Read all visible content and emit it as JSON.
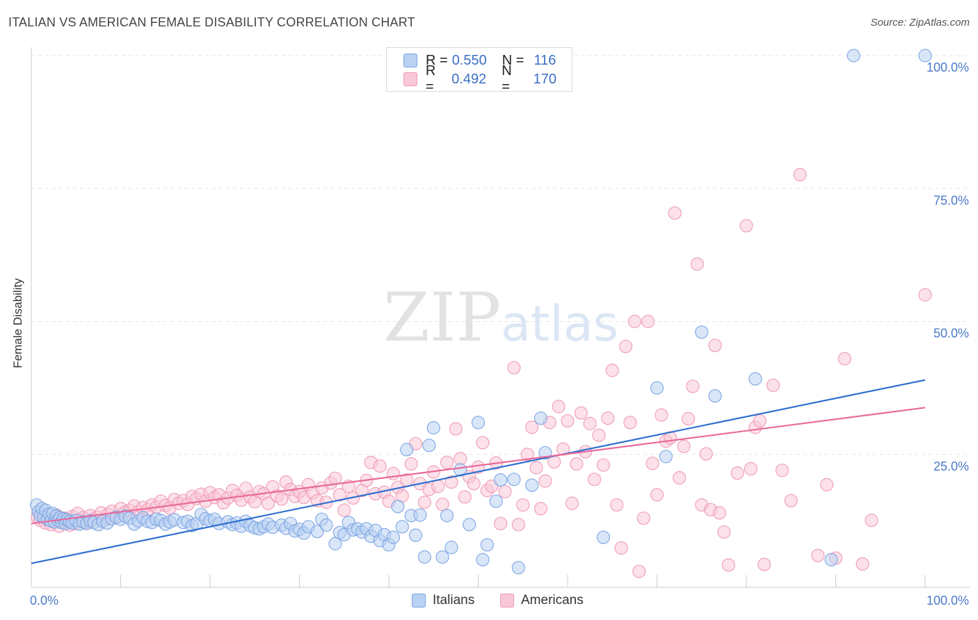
{
  "chart_data": {
    "type": "scatter",
    "title": "ITALIAN VS AMERICAN FEMALE DISABILITY CORRELATION CHART",
    "source": "Source: ZipAtlas.com",
    "watermark": "ZIPatlas",
    "xlabel": "",
    "ylabel": "Female Disability",
    "xlim": [
      0,
      100
    ],
    "ylim": [
      0,
      102
    ],
    "x_tick_labels": [
      "0.0%",
      "100.0%"
    ],
    "y_tick_labels": [
      "25.0%",
      "50.0%",
      "75.0%",
      "100.0%"
    ],
    "y_tick_values": [
      25,
      50,
      75,
      100
    ],
    "legend_stats": [
      {
        "r_label": "R =",
        "r_value": "0.550",
        "n_label": "N =",
        "n_value": "116"
      },
      {
        "r_label": "R =",
        "r_value": "0.492",
        "n_label": "N =",
        "n_value": "170"
      }
    ],
    "series": [
      {
        "name": "Italians",
        "color": "#7aa3e2",
        "fill": "#b9d1f3",
        "line_color": "#2e6fd0",
        "trend": {
          "x0": 0,
          "y0": 4.5,
          "x1": 100,
          "y1": 39
        },
        "points": [
          [
            0.6,
            15.5
          ],
          [
            0.8,
            14.2
          ],
          [
            1.0,
            13.5
          ],
          [
            1.2,
            14.8
          ],
          [
            1.4,
            13.2
          ],
          [
            1.6,
            14.5
          ],
          [
            1.8,
            12.8
          ],
          [
            2.0,
            13.8
          ],
          [
            2.2,
            12.5
          ],
          [
            2.4,
            13.9
          ],
          [
            2.6,
            12.3
          ],
          [
            2.8,
            13.4
          ],
          [
            3.0,
            12.6
          ],
          [
            3.2,
            13.1
          ],
          [
            3.4,
            12.2
          ],
          [
            3.6,
            12.9
          ],
          [
            3.8,
            12.0
          ],
          [
            4.0,
            12.7
          ],
          [
            4.3,
            12.4
          ],
          [
            4.6,
            12.1
          ],
          [
            5.0,
            12.6
          ],
          [
            5.4,
            11.9
          ],
          [
            5.8,
            12.3
          ],
          [
            6.2,
            12.0
          ],
          [
            6.6,
            12.5
          ],
          [
            7.0,
            12.2
          ],
          [
            7.5,
            11.8
          ],
          [
            8.0,
            12.4
          ],
          [
            8.5,
            12.1
          ],
          [
            9.0,
            12.9
          ],
          [
            9.5,
            13.2
          ],
          [
            10.0,
            12.8
          ],
          [
            10.5,
            13.4
          ],
          [
            11.0,
            13.0
          ],
          [
            11.5,
            11.9
          ],
          [
            12.0,
            12.5
          ],
          [
            12.5,
            13.1
          ],
          [
            13.0,
            12.4
          ],
          [
            13.5,
            12.2
          ],
          [
            14.0,
            12.8
          ],
          [
            14.5,
            12.6
          ],
          [
            15.0,
            11.9
          ],
          [
            15.5,
            12.3
          ],
          [
            16.0,
            12.7
          ],
          [
            17.0,
            12.2
          ],
          [
            17.5,
            12.4
          ],
          [
            18.0,
            11.6
          ],
          [
            18.5,
            12.0
          ],
          [
            19.0,
            13.7
          ],
          [
            19.5,
            12.9
          ],
          [
            20.0,
            12.5
          ],
          [
            20.5,
            12.8
          ],
          [
            21.0,
            12.0
          ],
          [
            22.0,
            12.3
          ],
          [
            22.5,
            11.8
          ],
          [
            23.0,
            12.1
          ],
          [
            23.5,
            11.5
          ],
          [
            24.0,
            12.4
          ],
          [
            24.5,
            11.6
          ],
          [
            25.0,
            11.2
          ],
          [
            25.5,
            11.0
          ],
          [
            26.0,
            11.4
          ],
          [
            26.5,
            11.9
          ],
          [
            27.0,
            11.3
          ],
          [
            28.0,
            11.7
          ],
          [
            28.5,
            11.1
          ],
          [
            29.0,
            12.0
          ],
          [
            29.5,
            10.6
          ],
          [
            30.0,
            10.9
          ],
          [
            30.5,
            10.2
          ],
          [
            31.0,
            11.4
          ],
          [
            32.0,
            10.5
          ],
          [
            32.5,
            12.8
          ],
          [
            33.0,
            11.7
          ],
          [
            34.0,
            8.2
          ],
          [
            34.5,
            10.3
          ],
          [
            35.0,
            9.9
          ],
          [
            35.5,
            12.2
          ],
          [
            36.0,
            10.8
          ],
          [
            36.5,
            11.0
          ],
          [
            37.0,
            10.4
          ],
          [
            37.5,
            11.0
          ],
          [
            38.0,
            9.6
          ],
          [
            38.5,
            10.7
          ],
          [
            39.0,
            8.8
          ],
          [
            39.5,
            9.9
          ],
          [
            40.0,
            8.0
          ],
          [
            40.5,
            9.4
          ],
          [
            41.0,
            15.2
          ],
          [
            41.5,
            11.4
          ],
          [
            42.0,
            25.9
          ],
          [
            42.5,
            13.5
          ],
          [
            43.0,
            9.8
          ],
          [
            43.5,
            13.6
          ],
          [
            44.0,
            5.7
          ],
          [
            44.5,
            26.7
          ],
          [
            45.0,
            30.0
          ],
          [
            46.0,
            5.7
          ],
          [
            46.5,
            13.5
          ],
          [
            47.0,
            7.5
          ],
          [
            48.0,
            22.1
          ],
          [
            49.0,
            11.8
          ],
          [
            50.0,
            31.0
          ],
          [
            50.5,
            5.2
          ],
          [
            51.0,
            8.0
          ],
          [
            52.0,
            16.2
          ],
          [
            52.5,
            20.2
          ],
          [
            54.0,
            20.3
          ],
          [
            54.5,
            3.7
          ],
          [
            56.0,
            19.2
          ],
          [
            57.0,
            31.8
          ],
          [
            57.5,
            25.3
          ],
          [
            64.0,
            9.4
          ],
          [
            70.0,
            37.5
          ],
          [
            71.0,
            24.6
          ],
          [
            75.0,
            48.0
          ],
          [
            76.5,
            36.0
          ],
          [
            81.0,
            39.2
          ],
          [
            89.5,
            5.2
          ],
          [
            92.0,
            100.0
          ],
          [
            100.0,
            100.0
          ]
        ]
      },
      {
        "name": "Americans",
        "color": "#ee98b3",
        "fill": "#f9c8d7",
        "line_color": "#e8699b",
        "trend": {
          "x0": 0,
          "y0": 12.0,
          "x1": 100,
          "y1": 33.8
        },
        "points": [
          [
            0.7,
            13.2
          ],
          [
            1.0,
            12.6
          ],
          [
            1.3,
            13.8
          ],
          [
            1.6,
            12.1
          ],
          [
            1.9,
            13.4
          ],
          [
            2.2,
            11.8
          ],
          [
            2.5,
            12.9
          ],
          [
            2.8,
            13.6
          ],
          [
            3.1,
            11.5
          ],
          [
            3.4,
            12.7
          ],
          [
            3.7,
            13.0
          ],
          [
            4.0,
            12.3
          ],
          [
            4.3,
            11.7
          ],
          [
            4.6,
            13.3
          ],
          [
            4.9,
            12.0
          ],
          [
            5.2,
            13.9
          ],
          [
            5.5,
            12.5
          ],
          [
            5.8,
            13.1
          ],
          [
            6.2,
            12.2
          ],
          [
            6.6,
            13.5
          ],
          [
            7.0,
            12.8
          ],
          [
            7.4,
            13.2
          ],
          [
            7.8,
            14.0
          ],
          [
            8.2,
            12.6
          ],
          [
            8.6,
            13.7
          ],
          [
            9.0,
            14.3
          ],
          [
            9.5,
            13.1
          ],
          [
            10.0,
            14.8
          ],
          [
            10.5,
            14.1
          ],
          [
            11.0,
            14.5
          ],
          [
            11.5,
            15.3
          ],
          [
            12.0,
            14.2
          ],
          [
            12.5,
            15.0
          ],
          [
            13.0,
            14.6
          ],
          [
            13.5,
            15.5
          ],
          [
            14.0,
            15.1
          ],
          [
            14.5,
            16.2
          ],
          [
            15.0,
            15.4
          ],
          [
            15.5,
            14.9
          ],
          [
            16.0,
            16.5
          ],
          [
            16.5,
            15.8
          ],
          [
            17.0,
            16.3
          ],
          [
            17.5,
            15.6
          ],
          [
            18.0,
            17.1
          ],
          [
            18.5,
            16.7
          ],
          [
            19.0,
            17.5
          ],
          [
            19.5,
            16.2
          ],
          [
            20.0,
            17.8
          ],
          [
            20.5,
            16.9
          ],
          [
            21.0,
            17.4
          ],
          [
            21.5,
            15.9
          ],
          [
            22.0,
            16.8
          ],
          [
            22.5,
            18.2
          ],
          [
            23.0,
            17.3
          ],
          [
            23.5,
            16.4
          ],
          [
            24.0,
            18.6
          ],
          [
            24.5,
            17.0
          ],
          [
            25.0,
            16.1
          ],
          [
            25.5,
            18.0
          ],
          [
            26.0,
            17.6
          ],
          [
            26.5,
            15.8
          ],
          [
            27.0,
            18.9
          ],
          [
            27.5,
            17.2
          ],
          [
            28.0,
            16.6
          ],
          [
            28.5,
            19.8
          ],
          [
            29.0,
            18.4
          ],
          [
            29.5,
            17.1
          ],
          [
            30.0,
            18.0
          ],
          [
            30.5,
            16.9
          ],
          [
            31.0,
            19.3
          ],
          [
            31.5,
            17.8
          ],
          [
            32.0,
            16.3
          ],
          [
            32.5,
            18.7
          ],
          [
            33.0,
            16.0
          ],
          [
            33.5,
            19.6
          ],
          [
            34.0,
            20.5
          ],
          [
            34.5,
            17.4
          ],
          [
            35.0,
            14.5
          ],
          [
            35.5,
            19.0
          ],
          [
            36.0,
            16.8
          ],
          [
            37.0,
            18.2
          ],
          [
            37.5,
            20.1
          ],
          [
            38.0,
            23.5
          ],
          [
            38.5,
            17.6
          ],
          [
            39.0,
            22.8
          ],
          [
            39.5,
            17.9
          ],
          [
            40.0,
            16.2
          ],
          [
            40.5,
            21.4
          ],
          [
            41.0,
            18.8
          ],
          [
            41.5,
            17.2
          ],
          [
            42.0,
            20.2
          ],
          [
            42.5,
            23.2
          ],
          [
            43.0,
            27.0
          ],
          [
            43.5,
            19.5
          ],
          [
            44.0,
            16.0
          ],
          [
            44.5,
            18.4
          ],
          [
            45.0,
            21.7
          ],
          [
            45.5,
            19.0
          ],
          [
            46.0,
            15.6
          ],
          [
            46.5,
            23.5
          ],
          [
            47.0,
            19.8
          ],
          [
            47.5,
            29.8
          ],
          [
            48.0,
            24.2
          ],
          [
            48.5,
            17.0
          ],
          [
            49.0,
            20.8
          ],
          [
            49.5,
            19.5
          ],
          [
            50.0,
            22.6
          ],
          [
            50.5,
            27.2
          ],
          [
            51.0,
            18.2
          ],
          [
            51.5,
            19.0
          ],
          [
            52.0,
            23.4
          ],
          [
            52.5,
            12.0
          ],
          [
            53.0,
            18.0
          ],
          [
            54.0,
            41.3
          ],
          [
            54.5,
            11.8
          ],
          [
            55.0,
            15.5
          ],
          [
            55.5,
            25.0
          ],
          [
            56.0,
            30.1
          ],
          [
            56.5,
            22.5
          ],
          [
            57.0,
            14.8
          ],
          [
            57.5,
            20.0
          ],
          [
            58.0,
            31.0
          ],
          [
            58.5,
            23.6
          ],
          [
            59.0,
            34.0
          ],
          [
            59.5,
            26.0
          ],
          [
            60.0,
            31.3
          ],
          [
            60.5,
            15.8
          ],
          [
            61.0,
            23.2
          ],
          [
            61.5,
            32.8
          ],
          [
            62.0,
            25.5
          ],
          [
            62.5,
            30.8
          ],
          [
            63.0,
            20.3
          ],
          [
            63.5,
            28.6
          ],
          [
            64.0,
            23.0
          ],
          [
            64.5,
            31.8
          ],
          [
            65.0,
            40.8
          ],
          [
            65.5,
            15.5
          ],
          [
            66.0,
            7.4
          ],
          [
            66.5,
            45.3
          ],
          [
            67.0,
            31.0
          ],
          [
            67.5,
            50.0
          ],
          [
            68.0,
            3.0
          ],
          [
            68.5,
            13.0
          ],
          [
            69.0,
            50.0
          ],
          [
            69.5,
            23.3
          ],
          [
            70.0,
            17.4
          ],
          [
            70.5,
            32.4
          ],
          [
            71.0,
            27.5
          ],
          [
            71.5,
            28.1
          ],
          [
            72.0,
            70.4
          ],
          [
            72.5,
            20.6
          ],
          [
            73.0,
            26.5
          ],
          [
            73.5,
            31.7
          ],
          [
            74.0,
            37.8
          ],
          [
            74.5,
            60.8
          ],
          [
            75.0,
            15.5
          ],
          [
            75.5,
            25.1
          ],
          [
            76.0,
            14.6
          ],
          [
            76.5,
            45.5
          ],
          [
            77.0,
            14.0
          ],
          [
            77.5,
            10.4
          ],
          [
            78.0,
            4.2
          ],
          [
            79.0,
            21.5
          ],
          [
            80.0,
            68.0
          ],
          [
            80.5,
            22.3
          ],
          [
            81.0,
            30.1
          ],
          [
            81.5,
            31.3
          ],
          [
            82.0,
            4.3
          ],
          [
            83.0,
            38.0
          ],
          [
            84.0,
            22.0
          ],
          [
            85.0,
            16.3
          ],
          [
            86.0,
            77.6
          ],
          [
            88.0,
            6.0
          ],
          [
            89.0,
            19.3
          ],
          [
            90.0,
            5.5
          ],
          [
            91.0,
            43.0
          ],
          [
            93.0,
            4.4
          ],
          [
            94.0,
            12.6
          ],
          [
            100.0,
            55.0
          ]
        ]
      }
    ]
  }
}
